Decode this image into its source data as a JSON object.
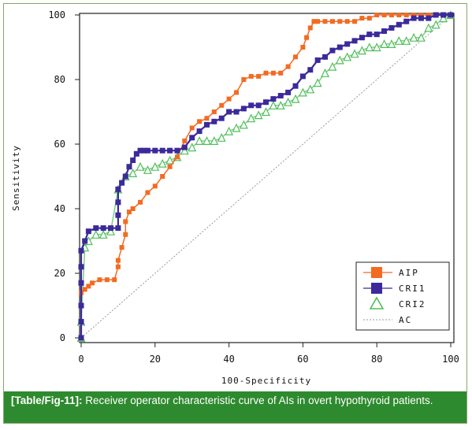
{
  "caption": {
    "label": "[Table/Fig-11]:",
    "text": "Receiver operator characteristic curve of AIs in overt hypothyroid patients."
  },
  "chart_data": {
    "type": "line",
    "title": "",
    "xlabel": "100-Specificity",
    "ylabel": "Sensitivity",
    "xlim": [
      0,
      100
    ],
    "ylim": [
      0,
      100
    ],
    "xticks": [
      0,
      20,
      40,
      60,
      80,
      100
    ],
    "yticks": [
      0,
      20,
      40,
      60,
      80,
      100
    ],
    "legend_position": "bottom-right",
    "series": [
      {
        "name": "AIP",
        "color": "#f26b22",
        "marker": "square",
        "x": [
          0,
          0,
          0,
          0,
          1,
          2,
          3,
          5,
          7,
          9,
          10,
          10,
          11,
          12,
          12,
          13,
          14,
          16,
          18,
          20,
          22,
          24,
          26,
          28,
          30,
          32,
          34,
          36,
          38,
          40,
          42,
          44,
          46,
          48,
          50,
          52,
          54,
          56,
          58,
          60,
          61,
          62,
          63,
          64,
          66,
          68,
          70,
          72,
          74,
          76,
          78,
          80,
          82,
          84,
          86,
          88,
          90,
          92,
          94,
          96,
          98,
          100
        ],
        "y": [
          0,
          5,
          10,
          14,
          15,
          16,
          17,
          18,
          18,
          18,
          22,
          24,
          28,
          32,
          36,
          39,
          40,
          42,
          45,
          47,
          50,
          53,
          56,
          61,
          65,
          67,
          68,
          70,
          72,
          74,
          76,
          80,
          81,
          81,
          82,
          82,
          82,
          84,
          87,
          90,
          93,
          96,
          98,
          98,
          98,
          98,
          98,
          98,
          98,
          99,
          99,
          100,
          100,
          100,
          100,
          100,
          100,
          100,
          100,
          100,
          100,
          100
        ]
      },
      {
        "name": "CRI1",
        "color": "#3b2a9b",
        "marker": "square",
        "x": [
          0,
          0,
          0,
          0,
          0,
          0,
          1,
          2,
          4,
          6,
          8,
          10,
          10,
          10,
          10,
          11,
          12,
          13,
          14,
          15,
          16,
          17,
          18,
          20,
          22,
          24,
          26,
          28,
          30,
          32,
          34,
          36,
          38,
          40,
          42,
          44,
          46,
          48,
          50,
          52,
          54,
          56,
          58,
          60,
          62,
          64,
          66,
          68,
          70,
          72,
          74,
          76,
          78,
          80,
          82,
          84,
          86,
          88,
          90,
          92,
          94,
          96,
          98,
          100
        ],
        "y": [
          0,
          5,
          10,
          17,
          22,
          27,
          30,
          33,
          34,
          34,
          34,
          34,
          38,
          42,
          46,
          48,
          50,
          53,
          55,
          57,
          58,
          58,
          58,
          58,
          58,
          58,
          58,
          59,
          62,
          64,
          66,
          67,
          68,
          70,
          70,
          71,
          72,
          72,
          73,
          74,
          75,
          76,
          78,
          81,
          83,
          86,
          87,
          89,
          90,
          91,
          92,
          93,
          94,
          94,
          95,
          96,
          97,
          98,
          99,
          99,
          99,
          100,
          100,
          100
        ]
      },
      {
        "name": "CRI2",
        "color": "#4fbf5a",
        "marker": "triangle",
        "x": [
          0,
          0,
          1,
          2,
          4,
          6,
          8,
          10,
          12,
          14,
          16,
          18,
          20,
          22,
          24,
          26,
          28,
          30,
          32,
          34,
          36,
          38,
          40,
          42,
          44,
          46,
          48,
          50,
          52,
          54,
          56,
          58,
          60,
          62,
          64,
          66,
          68,
          70,
          72,
          74,
          76,
          78,
          80,
          82,
          84,
          86,
          88,
          90,
          92,
          94,
          96,
          98,
          100
        ],
        "y": [
          0,
          5,
          28,
          30,
          32,
          32,
          33,
          46,
          50,
          51,
          53,
          52,
          53,
          54,
          55,
          56,
          58,
          59,
          61,
          61,
          61,
          62,
          64,
          65,
          66,
          68,
          69,
          70,
          72,
          72,
          73,
          74,
          76,
          77,
          79,
          82,
          84,
          86,
          87,
          88,
          89,
          90,
          90,
          91,
          91,
          92,
          92,
          93,
          93,
          96,
          97,
          99,
          100
        ]
      },
      {
        "name": "AC",
        "color": "#9a9a9a",
        "marker": "none",
        "line_style": "dotted",
        "x": [
          0,
          100
        ],
        "y": [
          0,
          100
        ]
      }
    ]
  }
}
